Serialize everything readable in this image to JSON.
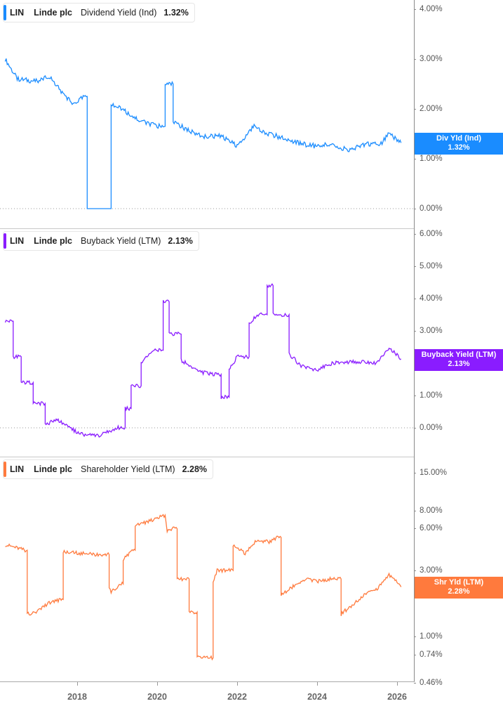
{
  "chart_data": [
    {
      "type": "line",
      "title": "LIN Linde plc Dividend Yield (Ind)",
      "legend": {
        "ticker": "LIN",
        "company": "Linde plc",
        "metric": "Dividend Yield (Ind)",
        "value": "1.32%"
      },
      "color": "#1a8cff",
      "ylabel": "",
      "yticks": [
        "4.00%",
        "3.00%",
        "2.00%",
        "1.00%",
        "0.00%"
      ],
      "ylim": [
        0,
        4.2
      ],
      "badge": {
        "label": "Div Yld (Ind)",
        "value": "1.32%"
      },
      "x": [
        2016.2,
        2016.5,
        2017.0,
        2017.3,
        2017.6,
        2017.9,
        2018.2,
        2018.25,
        2018.8,
        2018.85,
        2019.2,
        2019.6,
        2020.0,
        2020.2,
        2020.4,
        2020.8,
        2021.2,
        2021.6,
        2022.0,
        2022.4,
        2022.8,
        2023.2,
        2023.6,
        2024.0,
        2024.4,
        2024.8,
        2025.2,
        2025.6,
        2025.8,
        2026.1
      ],
      "values": [
        3.0,
        2.6,
        2.55,
        2.65,
        2.35,
        2.1,
        2.25,
        0.0,
        0.0,
        2.1,
        1.95,
        1.75,
        1.65,
        2.5,
        1.75,
        1.55,
        1.45,
        1.45,
        1.25,
        1.65,
        1.5,
        1.4,
        1.3,
        1.25,
        1.3,
        1.15,
        1.3,
        1.3,
        1.5,
        1.32
      ]
    },
    {
      "type": "line",
      "title": "LIN Linde plc Buyback Yield (LTM)",
      "legend": {
        "ticker": "LIN",
        "company": "Linde plc",
        "metric": "Buyback Yield (LTM)",
        "value": "2.13%"
      },
      "color": "#8a1cff",
      "yticks": [
        "6.00%",
        "5.00%",
        "4.00%",
        "3.00%",
        "2.00%",
        "1.00%",
        "0.00%"
      ],
      "ylim": [
        -0.5,
        6.3
      ],
      "badge": {
        "label": "Buyback Yield (LTM)",
        "value": "2.13%"
      },
      "x": [
        2016.2,
        2016.4,
        2016.6,
        2016.9,
        2017.2,
        2017.5,
        2017.8,
        2018.1,
        2018.5,
        2018.7,
        2019.0,
        2019.2,
        2019.35,
        2019.6,
        2019.9,
        2020.15,
        2020.3,
        2020.6,
        2021.0,
        2021.4,
        2021.6,
        2021.8,
        2022.0,
        2022.3,
        2022.5,
        2022.75,
        2022.9,
        2023.3,
        2023.6,
        2024.0,
        2024.4,
        2025.0,
        2025.5,
        2025.8,
        2026.1
      ],
      "values": [
        3.3,
        2.2,
        1.4,
        0.75,
        0.1,
        0.25,
        0.0,
        -0.2,
        -0.25,
        -0.15,
        0.0,
        0.6,
        1.3,
        2.0,
        2.4,
        3.9,
        2.9,
        2.1,
        1.75,
        1.65,
        0.95,
        1.8,
        2.2,
        3.2,
        3.5,
        4.4,
        3.5,
        2.3,
        1.9,
        1.8,
        2.0,
        2.05,
        2.0,
        2.5,
        2.13
      ]
    },
    {
      "type": "line",
      "title": "LIN Linde plc Shareholder Yield (LTM)",
      "legend": {
        "ticker": "LIN",
        "company": "Linde plc",
        "metric": "Shareholder Yield (LTM)",
        "value": "2.28%"
      },
      "color": "#ff7a3d",
      "yscale": "log",
      "yticks": [
        "15.00%",
        "8.00%",
        "6.00%",
        "3.00%",
        "2.00%",
        "1.00%",
        "0.74%",
        "0.46%"
      ],
      "ylim": [
        0.46,
        15
      ],
      "badge": {
        "label": "Shr Yld (LTM)",
        "value": "2.28%"
      },
      "x": [
        2016.2,
        2016.7,
        2016.75,
        2017.0,
        2017.3,
        2017.6,
        2017.65,
        2018.0,
        2018.5,
        2018.8,
        2018.85,
        2019.1,
        2019.15,
        2019.4,
        2019.45,
        2019.8,
        2020.2,
        2020.25,
        2020.4,
        2020.5,
        2020.8,
        2021.0,
        2021.2,
        2021.4,
        2021.5,
        2021.9,
        2022.2,
        2022.5,
        2022.8,
        2023.0,
        2023.1,
        2023.4,
        2023.7,
        2024.0,
        2024.3,
        2024.6,
        2024.9,
        2025.2,
        2025.5,
        2025.8,
        2026.1
      ],
      "values": [
        4.6,
        4.2,
        1.45,
        1.5,
        1.75,
        1.85,
        4.1,
        4.0,
        3.9,
        2.2,
        2.1,
        2.4,
        3.6,
        4.2,
        6.3,
        6.8,
        7.5,
        5.8,
        6.0,
        2.6,
        1.5,
        0.72,
        0.7,
        2.4,
        3.0,
        4.5,
        4.0,
        5.0,
        4.8,
        5.2,
        2.0,
        2.3,
        2.6,
        2.5,
        2.6,
        1.45,
        1.7,
        2.0,
        2.2,
        2.8,
        2.28
      ]
    }
  ],
  "xaxis": {
    "ticks": [
      "2018",
      "2020",
      "2022",
      "2024",
      "2026"
    ]
  }
}
